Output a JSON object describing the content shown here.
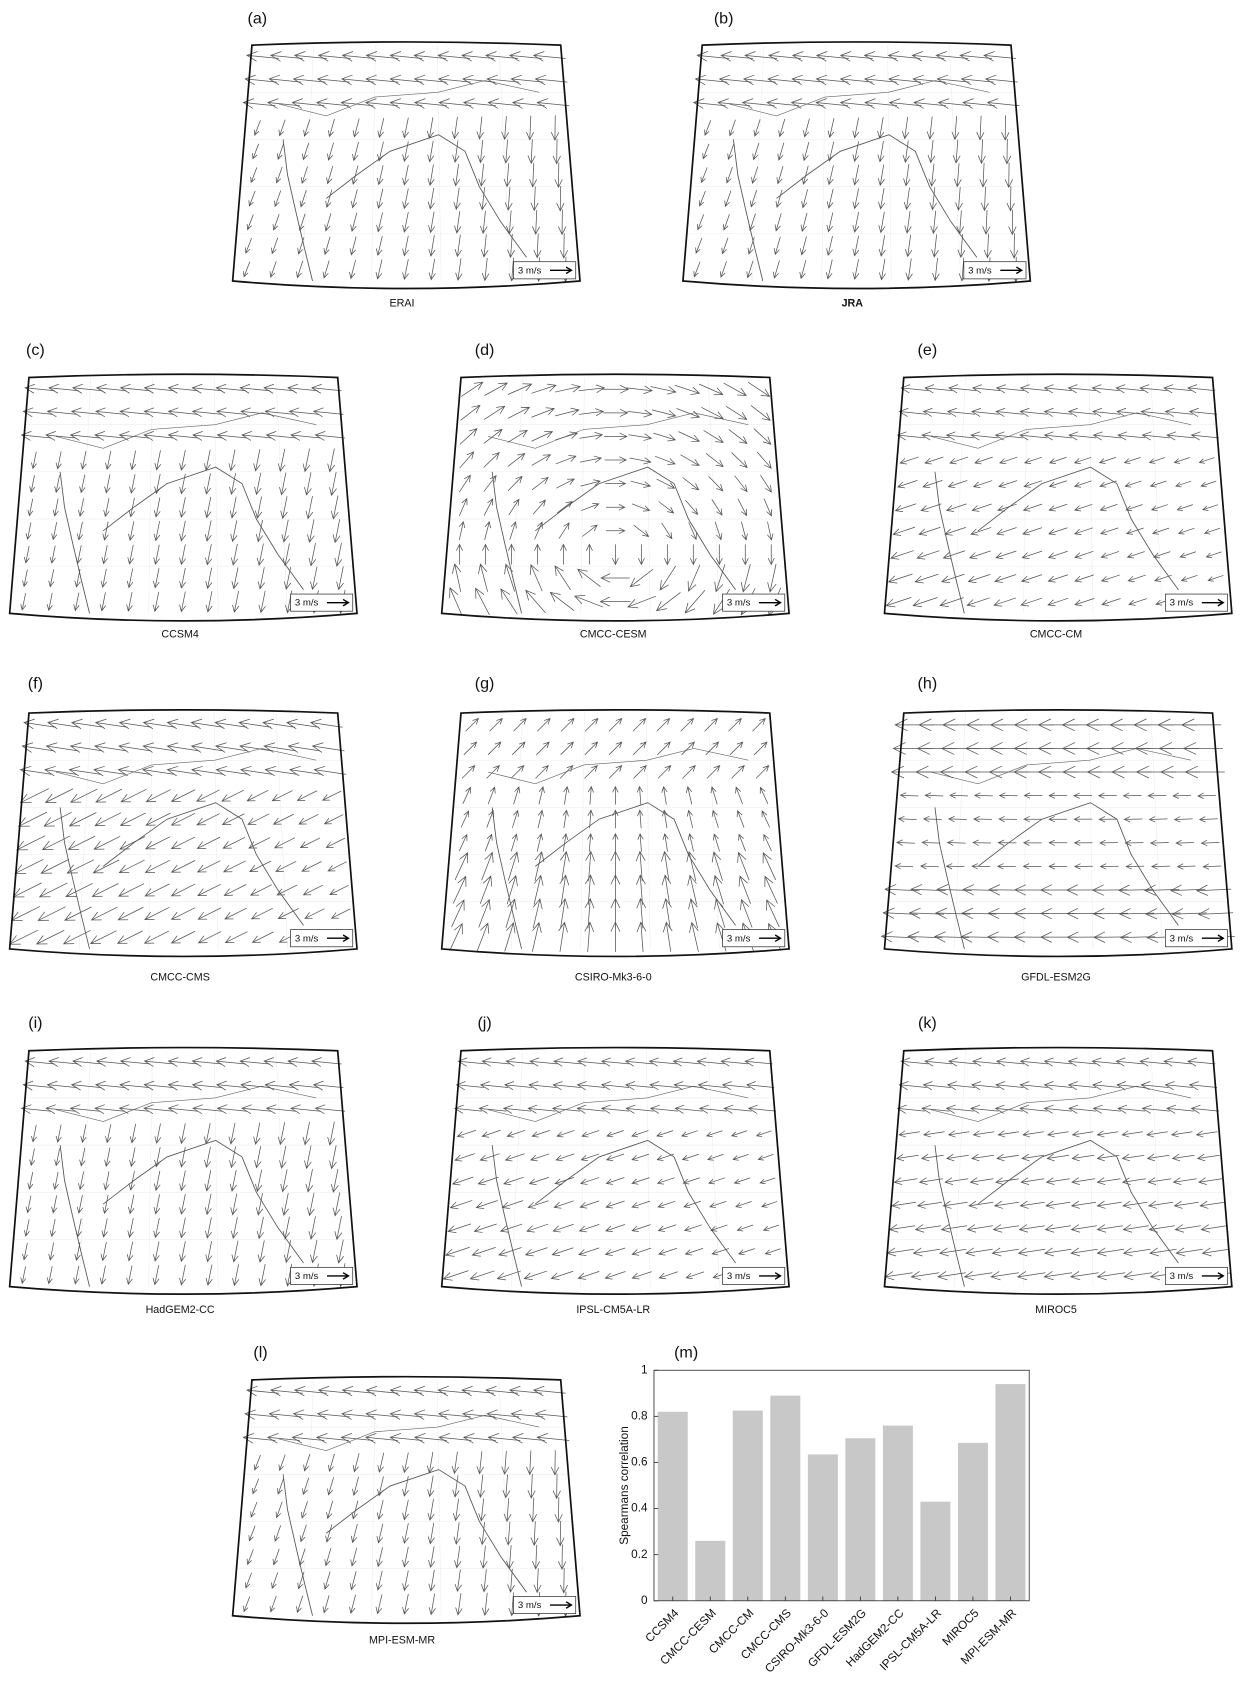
{
  "panels": [
    {
      "label": "(a)",
      "name": "ERAI",
      "scale_label": "3 m/s"
    },
    {
      "label": "(b)",
      "name": "JRA",
      "scale_label": "3 m/s"
    },
    {
      "label": "(c)",
      "name": "CCSM4",
      "scale_label": "3 m/s"
    },
    {
      "label": "(d)",
      "name": "CMCC-CESM",
      "scale_label": "3 m/s"
    },
    {
      "label": "(e)",
      "name": "CMCC-CM",
      "scale_label": "3 m/s"
    },
    {
      "label": "(f)",
      "name": "CMCC-CMS",
      "scale_label": "3 m/s"
    },
    {
      "label": "(g)",
      "name": "CSIRO-Mk3-6-0",
      "scale_label": "3 m/s"
    },
    {
      "label": "(h)",
      "name": "GFDL-ESM2G",
      "scale_label": "3 m/s"
    },
    {
      "label": "(i)",
      "name": "HadGEM2-CC",
      "scale_label": "3 m/s"
    },
    {
      "label": "(j)",
      "name": "IPSL-CM5A-LR",
      "scale_label": "3 m/s"
    },
    {
      "label": "(k)",
      "name": "MIROC5",
      "scale_label": "3 m/s"
    },
    {
      "label": "(l)",
      "name": "MPI-ESM-MR",
      "scale_label": "3 m/s"
    }
  ],
  "chart_data": {
    "type": "bar",
    "panel_label": "(m)",
    "y_label": "Spearmans correlation",
    "categories": [
      "CCSM4",
      "CMCC-CESM",
      "CMCC-CM",
      "CMCC-CMS",
      "CSIRO-Mk3-6-0",
      "GFDL-ESM2G",
      "HadGEM2-CC",
      "IPSL-CM5A-LR",
      "MIROC5",
      "MPI-ESM-MR"
    ],
    "values": [
      0.82,
      0.26,
      0.825,
      0.89,
      0.635,
      0.705,
      0.76,
      0.43,
      0.685,
      0.94
    ],
    "color": "#c8c8c8",
    "ylim": [
      0,
      1
    ],
    "yticks": [
      0,
      0.2,
      0.4,
      0.6,
      0.8,
      1
    ],
    "grid": false
  }
}
